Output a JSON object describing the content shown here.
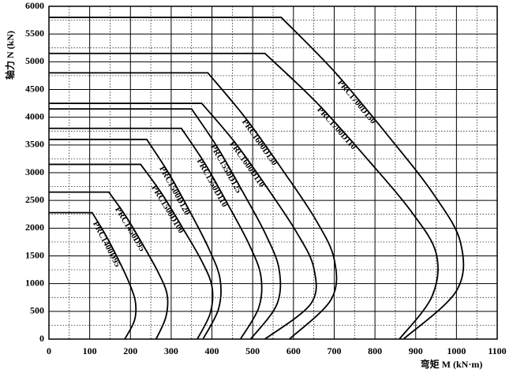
{
  "chart_data": {
    "type": "line",
    "y_label": "轴力 N (kN)",
    "x_label": "弯矩 M (kN·m)",
    "xlim": [
      0,
      1100
    ],
    "xticks": [
      0,
      100,
      200,
      300,
      400,
      500,
      600,
      700,
      800,
      900,
      1000,
      1100
    ],
    "ylim": [
      0,
      6000
    ],
    "yticks": [
      0,
      500,
      1000,
      1500,
      2000,
      2500,
      3000,
      3500,
      4000,
      4500,
      5000,
      5500,
      6000
    ],
    "grid": true,
    "series": [
      {
        "name": "PRC1400D95",
        "color": "#000000",
        "x": [
          0,
          106,
          138,
          170,
          196,
          212,
          210,
          186
        ],
        "values": [
          2280,
          2280,
          1890,
          1440,
          1030,
          680,
          340,
          0
        ]
      },
      {
        "name": "PRC1450D95",
        "color": "#000000",
        "x": [
          0,
          147,
          190,
          233,
          269,
          290,
          287,
          263
        ],
        "values": [
          2650,
          2650,
          2200,
          1670,
          1190,
          800,
          400,
          0
        ]
      },
      {
        "name": "PRC1500D100",
        "color": "#000000",
        "x": [
          0,
          225,
          278,
          330,
          374,
          400,
          396,
          364
        ],
        "values": [
          3150,
          3150,
          2610,
          1980,
          1420,
          950,
          470,
          0
        ]
      },
      {
        "name": "PRC1500D120",
        "color": "#000000",
        "x": [
          0,
          240,
          294,
          348,
          393,
          420,
          416,
          378
        ],
        "values": [
          3600,
          3600,
          2990,
          2270,
          1620,
          1080,
          540,
          0
        ]
      },
      {
        "name": "PRC1550D110",
        "color": "#000000",
        "x": [
          0,
          325,
          384,
          442,
          491,
          520,
          515,
          470
        ],
        "values": [
          3800,
          3800,
          3150,
          2390,
          1710,
          1140,
          570,
          0
        ]
      },
      {
        "name": "PRC1550D125",
        "color": "#000000",
        "x": [
          0,
          350,
          415,
          479,
          533,
          565,
          559,
          495
        ],
        "values": [
          4150,
          4150,
          3440,
          2610,
          1870,
          1250,
          620,
          0
        ]
      },
      {
        "name": "PRC1600D110",
        "color": "#000000",
        "x": [
          0,
          375,
          458,
          540,
          609,
          650,
          643,
          530
        ],
        "values": [
          4250,
          4250,
          3530,
          2680,
          1910,
          1280,
          640,
          0
        ]
      },
      {
        "name": "PRC1600D130",
        "color": "#000000",
        "x": [
          0,
          390,
          483,
          576,
          654,
          700,
          693,
          590
        ],
        "values": [
          4800,
          4800,
          3980,
          3020,
          2160,
          1440,
          720,
          0
        ]
      },
      {
        "name": "PRC1700D110",
        "color": "#000000",
        "x": [
          0,
          530,
          656,
          782,
          887,
          950,
          940,
          860
        ],
        "values": [
          5150,
          5150,
          4270,
          3240,
          2320,
          1550,
          770,
          0
        ]
      },
      {
        "name": "PRC1700D130",
        "color": "#000000",
        "x": [
          0,
          570,
          702,
          834,
          944,
          1010,
          1000,
          870
        ],
        "values": [
          5800,
          5800,
          4810,
          3650,
          2610,
          1740,
          870,
          0
        ]
      }
    ]
  }
}
